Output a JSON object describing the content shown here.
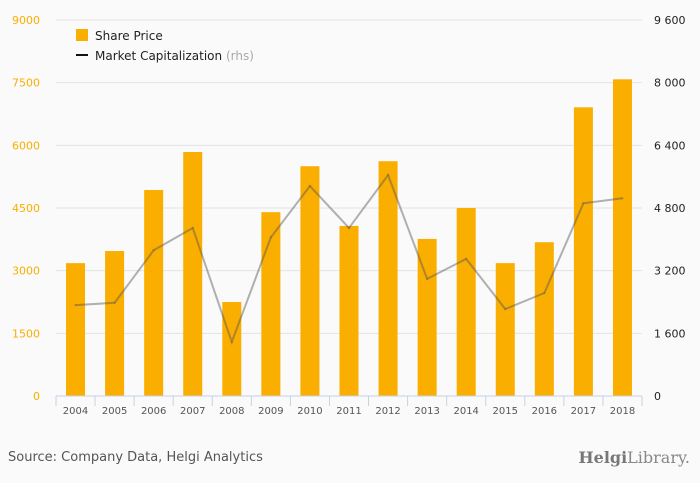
{
  "chart_data": {
    "type": "bar",
    "title": "",
    "categories": [
      "2004",
      "2005",
      "2006",
      "2007",
      "2008",
      "2009",
      "2010",
      "2011",
      "2012",
      "2013",
      "2014",
      "2015",
      "2016",
      "2017",
      "2018"
    ],
    "series": [
      {
        "name": "Share Price",
        "type": "bar",
        "axis": "left",
        "color": "#f9ae00",
        "values": [
          3180,
          3470,
          4930,
          5840,
          2250,
          4400,
          5500,
          4070,
          5620,
          3760,
          4500,
          3180,
          3680,
          6910,
          7580
        ]
      },
      {
        "name": "Market Capitalization",
        "suffix": "(rhs)",
        "type": "line",
        "axis": "right",
        "color": "#555555",
        "values": [
          2320,
          2380,
          3720,
          4290,
          1380,
          4050,
          5360,
          4290,
          5640,
          2990,
          3500,
          2220,
          2630,
          4920,
          5050
        ]
      }
    ],
    "left_axis": {
      "ylim": [
        0,
        9000
      ],
      "ticks": [
        "0",
        "1500",
        "3000",
        "4500",
        "6000",
        "7500",
        "9000"
      ],
      "color": "#f9ae00"
    },
    "right_axis": {
      "ylim": [
        0,
        9600
      ],
      "ticks": [
        "0",
        "1 600",
        "3 200",
        "4 800",
        "6 400",
        "8 000",
        "9 600"
      ]
    },
    "grid": true,
    "legend": "top-left"
  },
  "footer": {
    "source": "Source: Company Data, Helgi Analytics",
    "logo_bold": "Helgi",
    "logo_light": "Library."
  }
}
